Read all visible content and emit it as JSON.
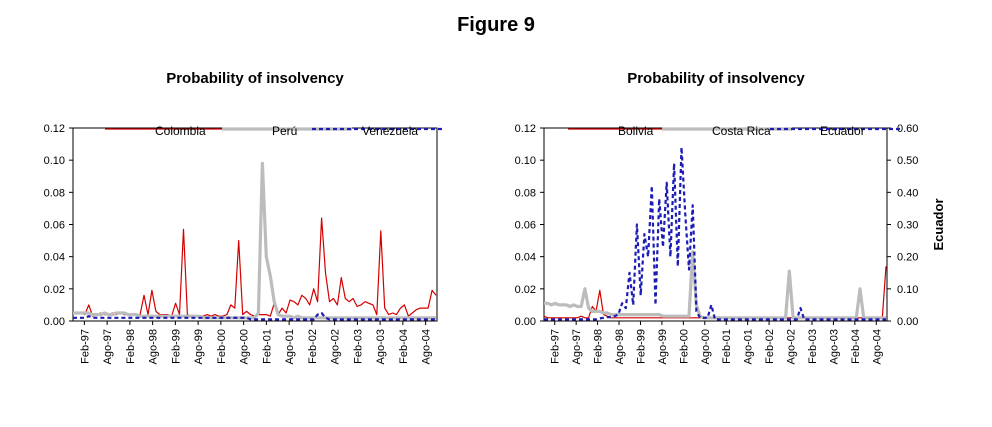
{
  "figure_title": "Figure 9",
  "chart_data": [
    {
      "type": "line",
      "title": "Probability of insolvency",
      "ylim": [
        0,
        0.12
      ],
      "y_ticks": [
        "0.00",
        "0.02",
        "0.04",
        "0.06",
        "0.08",
        "0.10",
        "0.12"
      ],
      "x_ticks": [
        "Feb-97",
        "Ago-97",
        "Feb-98",
        "Ago-98",
        "Feb-99",
        "Ago-99",
        "Feb-00",
        "Ago-00",
        "Feb-01",
        "Ago-01",
        "Feb-02",
        "Ago-02",
        "Feb-03",
        "Ago-03",
        "Feb-04",
        "Ago-04"
      ],
      "series": [
        {
          "name": "Colombia",
          "color": "#d40000",
          "style": "solid",
          "values": [
            0.005,
            0.005,
            0.005,
            0.004,
            0.01,
            0.003,
            0.004,
            0.005,
            0.004,
            0.004,
            0.005,
            0.004,
            0.005,
            0.004,
            0.004,
            0.004,
            0.004,
            0.004,
            0.016,
            0.004,
            0.019,
            0.006,
            0.004,
            0.004,
            0.004,
            0.003,
            0.011,
            0.004,
            0.057,
            0.004,
            0.003,
            0.003,
            0.003,
            0.003,
            0.004,
            0.003,
            0.004,
            0.003,
            0.003,
            0.004,
            0.01,
            0.008,
            0.05,
            0.004,
            0.006,
            0.004,
            0.003,
            0.004,
            0.004,
            0.004,
            0.003,
            0.011,
            0.004,
            0.008,
            0.005,
            0.013,
            0.012,
            0.01,
            0.016,
            0.014,
            0.01,
            0.02,
            0.012,
            0.064,
            0.03,
            0.012,
            0.014,
            0.01,
            0.027,
            0.014,
            0.012,
            0.014,
            0.009,
            0.01,
            0.012,
            0.011,
            0.01,
            0.004,
            0.056,
            0.008,
            0.004,
            0.005,
            0.004,
            0.008,
            0.01,
            0.003,
            0.005,
            0.007,
            0.008,
            0.008,
            0.008,
            0.019,
            0.016
          ]
        },
        {
          "name": "Perú",
          "color": "#bcbcbc",
          "style": "thick",
          "values": [
            0.005,
            0.005,
            0.005,
            0.005,
            0.005,
            0.004,
            0.004,
            0.004,
            0.005,
            0.004,
            0.004,
            0.005,
            0.005,
            0.005,
            0.004,
            0.004,
            0.004,
            0.003,
            0.003,
            0.003,
            0.003,
            0.003,
            0.003,
            0.003,
            0.003,
            0.003,
            0.003,
            0.003,
            0.003,
            0.003,
            0.003,
            0.003,
            0.003,
            0.002,
            0.002,
            0.002,
            0.002,
            0.002,
            0.002,
            0.002,
            0.002,
            0.002,
            0.002,
            0.002,
            0.002,
            0.002,
            0.002,
            0.005,
            0.098,
            0.04,
            0.028,
            0.012,
            0.004,
            0.003,
            0.003,
            0.003,
            0.002,
            0.003,
            0.002,
            0.002,
            0.002,
            0.002,
            0.002,
            0.002,
            0.002,
            0.002,
            0.002,
            0.002,
            0.002,
            0.002,
            0.002,
            0.002,
            0.002,
            0.002,
            0.002,
            0.002,
            0.002,
            0.002,
            0.002,
            0.002,
            0.002,
            0.002,
            0.002,
            0.002,
            0.002,
            0.002,
            0.002,
            0.002,
            0.002,
            0.002,
            0.002,
            0.002,
            0.002
          ]
        },
        {
          "name": "Venezuela",
          "color": "#1c1cb4",
          "style": "dashed",
          "values": [
            0.002,
            0.002,
            0.002,
            0.002,
            0.003,
            0.002,
            0.002,
            0.002,
            0.002,
            0.002,
            0.002,
            0.002,
            0.002,
            0.002,
            0.002,
            0.002,
            0.002,
            0.002,
            0.002,
            0.002,
            0.002,
            0.002,
            0.002,
            0.002,
            0.002,
            0.002,
            0.002,
            0.002,
            0.002,
            0.002,
            0.002,
            0.002,
            0.002,
            0.002,
            0.002,
            0.002,
            0.002,
            0.002,
            0.002,
            0.002,
            0.002,
            0.002,
            0.002,
            0.002,
            0.002,
            0.001,
            0.001,
            0.001,
            0.001,
            0.001,
            0.001,
            0.001,
            0.001,
            0.001,
            0.001,
            0.001,
            0.001,
            0.001,
            0.001,
            0.001,
            0.001,
            0.001,
            0.004,
            0.005,
            0.002,
            0.001,
            0.001,
            0.001,
            0.001,
            0.001,
            0.001,
            0.001,
            0.001,
            0.001,
            0.001,
            0.001,
            0.001,
            0.001,
            0.001,
            0.001,
            0.001,
            0.001,
            0.001,
            0.001,
            0.001,
            0.001,
            0.001,
            0.001,
            0.001,
            0.001,
            0.001,
            0.001,
            0.001
          ]
        }
      ]
    },
    {
      "type": "line",
      "title": "Probability of insolvency",
      "ylim": [
        0,
        0.12
      ],
      "y2lim": [
        0,
        0.6
      ],
      "y2label": "Ecuador",
      "y_ticks": [
        "0.00",
        "0.02",
        "0.04",
        "0.06",
        "0.08",
        "0.10",
        "0.12"
      ],
      "y2_ticks": [
        "0.00",
        "0.10",
        "0.20",
        "0.30",
        "0.40",
        "0.50",
        "0.60"
      ],
      "x_ticks": [
        "Feb-97",
        "Ago-97",
        "Feb-98",
        "Ago-98",
        "Feb-99",
        "Ago-99",
        "Feb-00",
        "Ago-00",
        "Feb-01",
        "Ago-01",
        "Feb-02",
        "Ago-02",
        "Feb-03",
        "Ago-03",
        "Feb-04",
        "Ago-04"
      ],
      "series": [
        {
          "name": "Bolivia",
          "color": "#d40000",
          "style": "solid",
          "axis": "left",
          "values": [
            0.003,
            0.002,
            0.002,
            0.002,
            0.002,
            0.002,
            0.002,
            0.002,
            0.002,
            0.002,
            0.003,
            0.002,
            0.002,
            0.009,
            0.006,
            0.019,
            0.004,
            0.003,
            0.002,
            0.002,
            0.002,
            0.002,
            0.002,
            0.002,
            0.002,
            0.002,
            0.002,
            0.002,
            0.002,
            0.002,
            0.002,
            0.002,
            0.002,
            0.002,
            0.002,
            0.002,
            0.002,
            0.002,
            0.002,
            0.002,
            0.002,
            0.002,
            0.002,
            0.002,
            0.002,
            0.002,
            0.002,
            0.002,
            0.002,
            0.002,
            0.002,
            0.002,
            0.002,
            0.002,
            0.002,
            0.002,
            0.002,
            0.002,
            0.002,
            0.002,
            0.002,
            0.002,
            0.002,
            0.002,
            0.002,
            0.002,
            0.002,
            0.002,
            0.002,
            0.002,
            0.002,
            0.002,
            0.002,
            0.002,
            0.002,
            0.002,
            0.002,
            0.002,
            0.002,
            0.002,
            0.002,
            0.002,
            0.002,
            0.002,
            0.002,
            0.002,
            0.002,
            0.002,
            0.002,
            0.002,
            0.002,
            0.002,
            0.034
          ]
        },
        {
          "name": "Costa Rica",
          "color": "#bcbcbc",
          "style": "thick",
          "axis": "left",
          "values": [
            0.011,
            0.011,
            0.01,
            0.011,
            0.01,
            0.01,
            0.01,
            0.009,
            0.01,
            0.009,
            0.009,
            0.02,
            0.008,
            0.006,
            0.006,
            0.006,
            0.005,
            0.005,
            0.004,
            0.004,
            0.004,
            0.004,
            0.004,
            0.004,
            0.004,
            0.004,
            0.004,
            0.004,
            0.004,
            0.004,
            0.004,
            0.004,
            0.003,
            0.003,
            0.003,
            0.003,
            0.003,
            0.003,
            0.003,
            0.003,
            0.043,
            0.01,
            0.003,
            0.002,
            0.002,
            0.002,
            0.002,
            0.002,
            0.002,
            0.002,
            0.002,
            0.002,
            0.002,
            0.002,
            0.002,
            0.002,
            0.002,
            0.002,
            0.002,
            0.002,
            0.002,
            0.002,
            0.002,
            0.002,
            0.002,
            0.002,
            0.031,
            0.002,
            0.002,
            0.002,
            0.002,
            0.002,
            0.002,
            0.002,
            0.002,
            0.002,
            0.002,
            0.002,
            0.002,
            0.002,
            0.002,
            0.002,
            0.002,
            0.002,
            0.002,
            0.02,
            0.002,
            0.002,
            0.002,
            0.002,
            0.002,
            0.002,
            0.002
          ]
        },
        {
          "name": "Ecuador",
          "color": "#1c1cb4",
          "style": "dashed",
          "axis": "right",
          "values": [
            0.005,
            0.005,
            0.005,
            0.005,
            0.005,
            0.005,
            0.005,
            0.005,
            0.005,
            0.005,
            0.005,
            0.005,
            0.005,
            0.005,
            0.005,
            0.008,
            0.01,
            0.012,
            0.012,
            0.015,
            0.02,
            0.055,
            0.04,
            0.15,
            0.05,
            0.3,
            0.08,
            0.27,
            0.2,
            0.42,
            0.05,
            0.38,
            0.23,
            0.43,
            0.2,
            0.49,
            0.17,
            0.54,
            0.33,
            0.16,
            0.36,
            0.03,
            0.01,
            0.01,
            0.01,
            0.05,
            0.005,
            0.005,
            0.005,
            0.005,
            0.005,
            0.005,
            0.005,
            0.005,
            0.005,
            0.005,
            0.005,
            0.005,
            0.005,
            0.005,
            0.005,
            0.005,
            0.005,
            0.005,
            0.005,
            0.005,
            0.005,
            0.005,
            0.005,
            0.04,
            0.005,
            0.005,
            0.005,
            0.005,
            0.005,
            0.005,
            0.005,
            0.005,
            0.005,
            0.005,
            0.005,
            0.005,
            0.005,
            0.005,
            0.005,
            0.005,
            0.005,
            0.005,
            0.005,
            0.005,
            0.005,
            0.005,
            0.005
          ]
        }
      ]
    }
  ]
}
